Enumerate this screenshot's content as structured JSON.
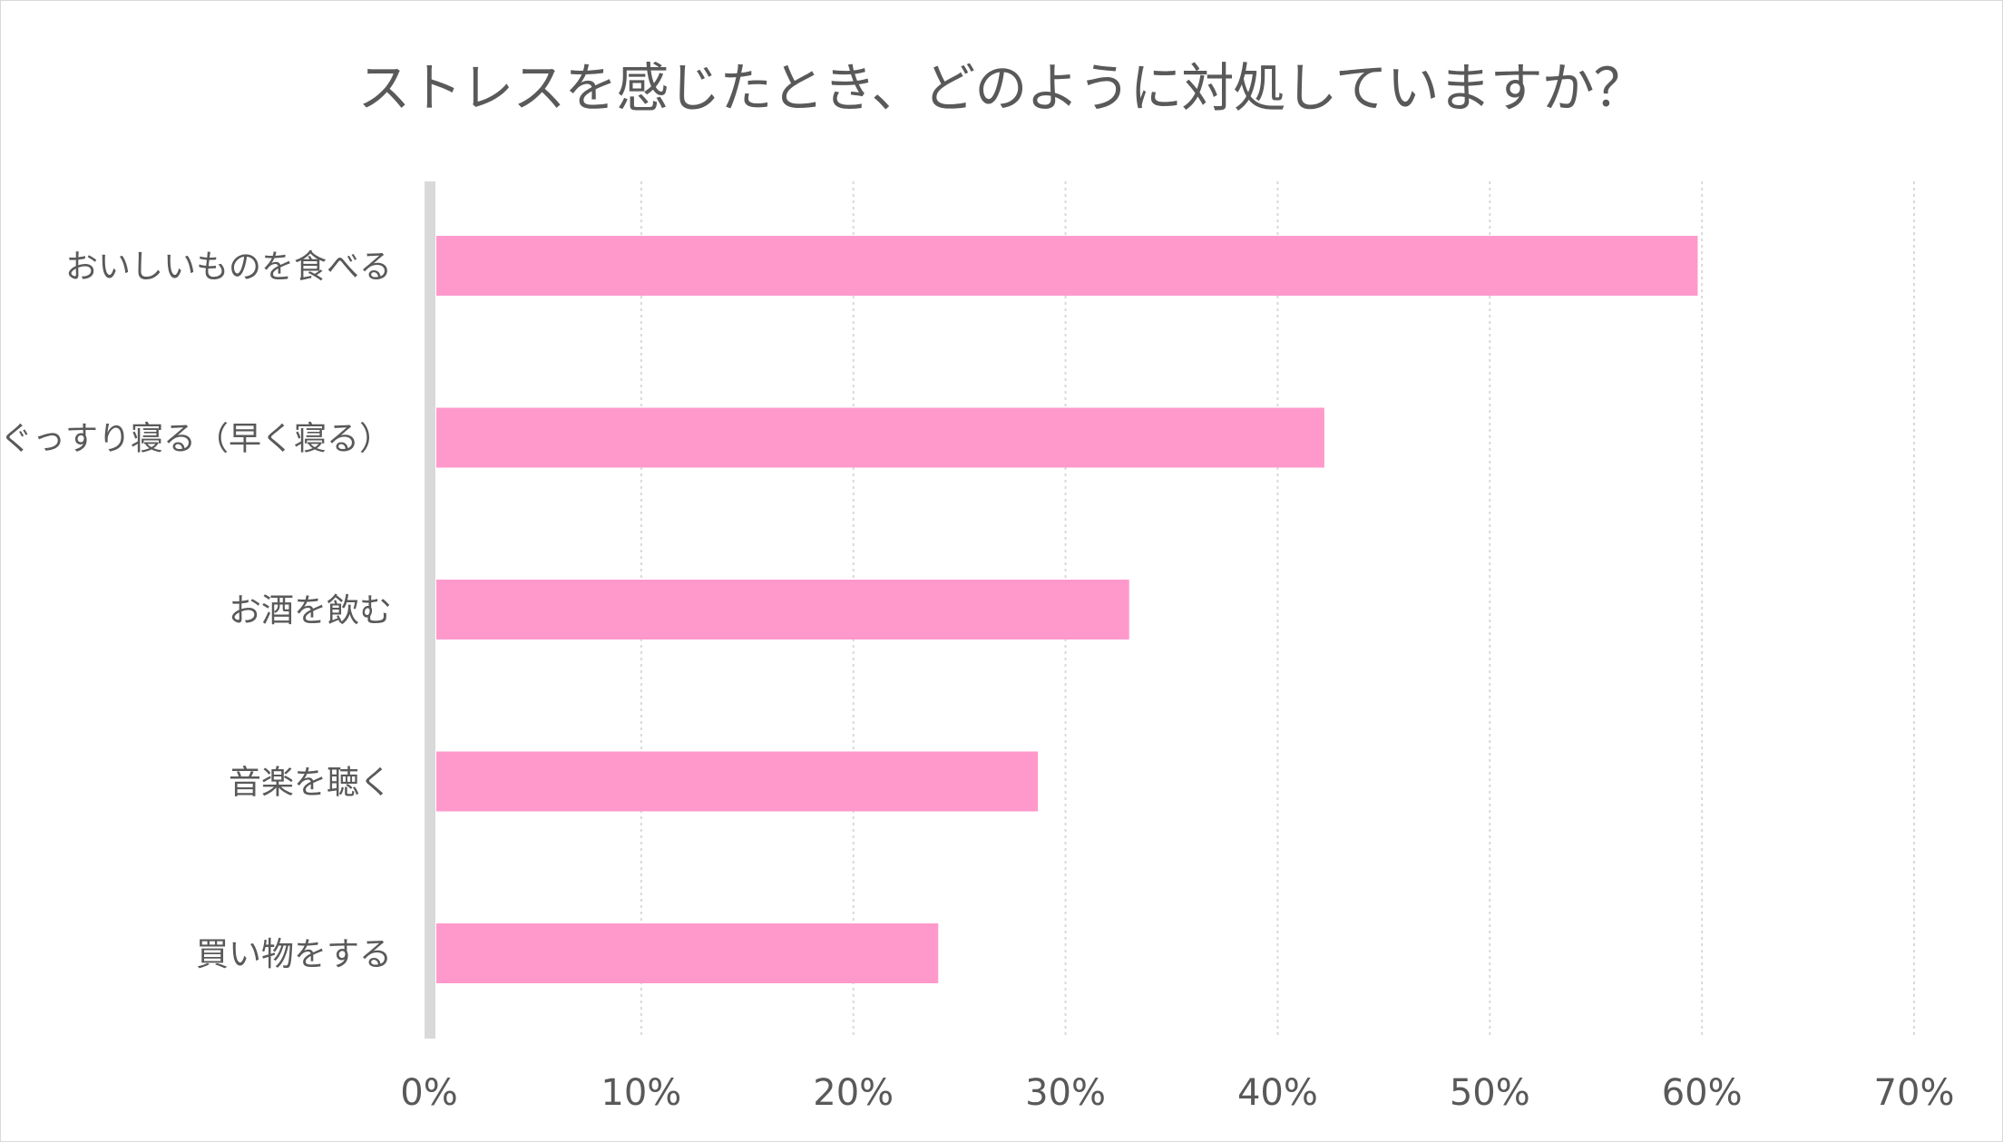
{
  "chart_data": {
    "type": "bar",
    "orientation": "horizontal",
    "title": "ストレスを感じたとき、どのように対処していますか？",
    "categories": [
      "おいしいものを食べる",
      "ぐっすり寝る（早く寝る）",
      "お酒を飲む",
      "音楽を聴く",
      "買い物をする"
    ],
    "values": [
      59.8,
      42.2,
      33.0,
      28.7,
      24.0
    ],
    "value_unit": "%",
    "xlim": [
      0,
      70
    ],
    "x_ticks": [
      "0%",
      "10%",
      "20%",
      "30%",
      "40%",
      "50%",
      "60%",
      "70%"
    ],
    "grid": "vertical dotted",
    "legend": "none",
    "colors": {
      "bar": "#ff99cc",
      "axis": "#d9d9d9",
      "grid": "#d9d9d9",
      "text": "#595959"
    }
  }
}
